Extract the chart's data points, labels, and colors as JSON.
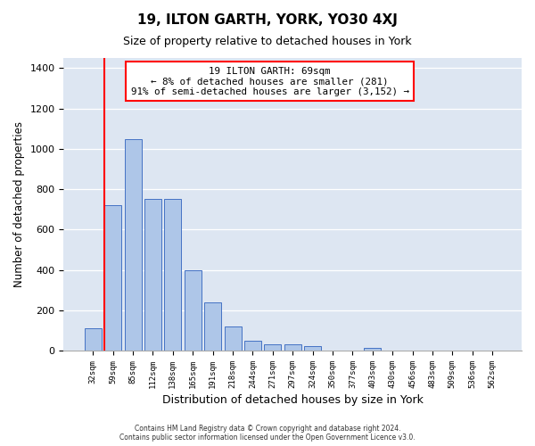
{
  "title": "19, ILTON GARTH, YORK, YO30 4XJ",
  "subtitle": "Size of property relative to detached houses in York",
  "xlabel": "Distribution of detached houses by size in York",
  "ylabel": "Number of detached properties",
  "bar_labels": [
    "32sqm",
    "59sqm",
    "85sqm",
    "112sqm",
    "138sqm",
    "165sqm",
    "191sqm",
    "218sqm",
    "244sqm",
    "271sqm",
    "297sqm",
    "324sqm",
    "350sqm",
    "377sqm",
    "403sqm",
    "430sqm",
    "456sqm",
    "483sqm",
    "509sqm",
    "536sqm",
    "562sqm"
  ],
  "bar_values": [
    110,
    720,
    1050,
    750,
    750,
    400,
    237,
    120,
    50,
    30,
    30,
    22,
    0,
    0,
    15,
    0,
    0,
    0,
    0,
    0,
    0
  ],
  "bar_color": "#aec6e8",
  "bar_edge_color": "#4472c4",
  "ylim": [
    0,
    1450
  ],
  "yticks": [
    0,
    200,
    400,
    600,
    800,
    1000,
    1200,
    1400
  ],
  "vline_x_index": 1,
  "vline_color": "red",
  "annotation_lines": [
    "19 ILTON GARTH: 69sqm",
    "← 8% of detached houses are smaller (281)",
    "91% of semi-detached houses are larger (3,152) →"
  ],
  "footer_line1": "Contains HM Land Registry data © Crown copyright and database right 2024.",
  "footer_line2": "Contains public sector information licensed under the Open Government Licence v3.0.",
  "plot_bg_color": "#dde6f2",
  "fig_bg_color": "#ffffff"
}
